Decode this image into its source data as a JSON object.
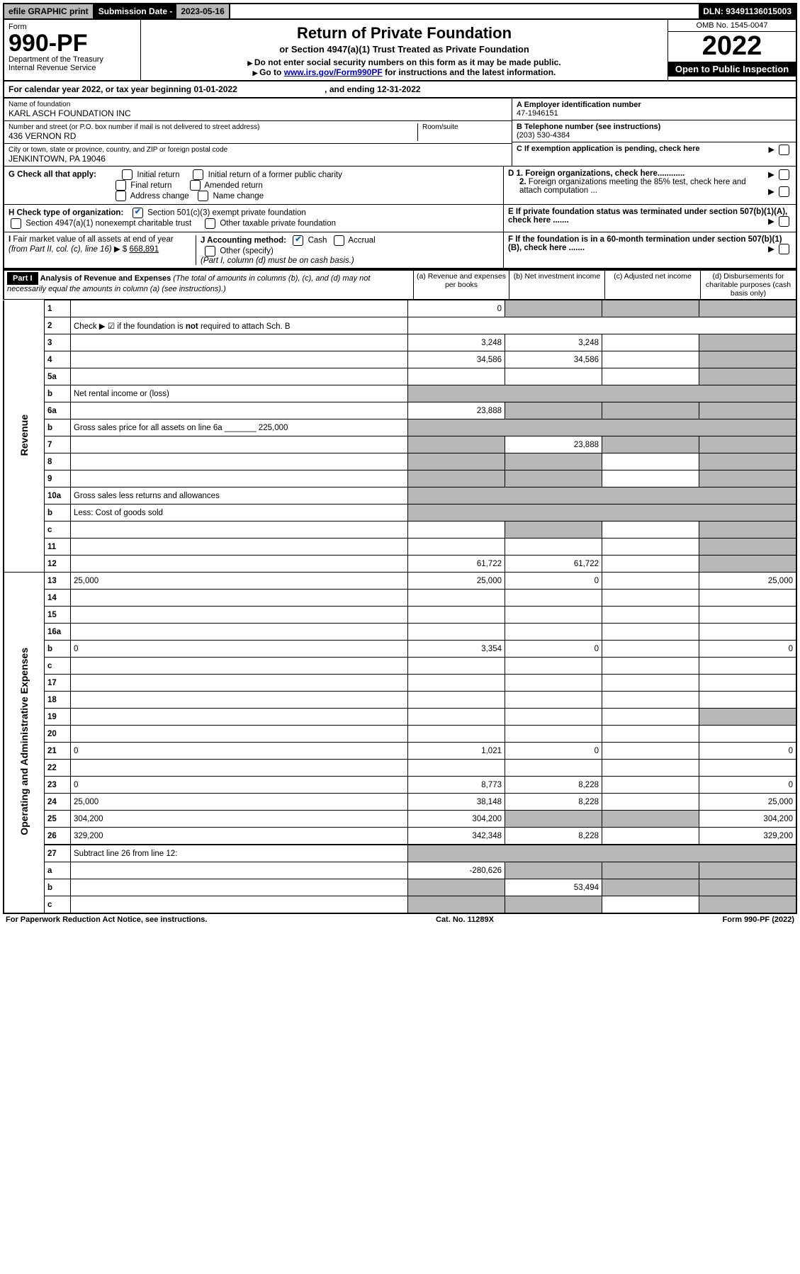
{
  "top": {
    "efile": "efile GRAPHIC print",
    "sub_label": "Submission Date - ",
    "sub_date": "2023-05-16",
    "dln": "DLN: 93491136015003"
  },
  "header": {
    "form_label": "Form",
    "form_no": "990-PF",
    "dept": "Department of the Treasury",
    "irs": "Internal Revenue Service",
    "title": "Return of Private Foundation",
    "subtitle": "or Section 4947(a)(1) Trust Treated as Private Foundation",
    "instr1": "Do not enter social security numbers on this form as it may be made public.",
    "instr2_pre": "Go to ",
    "instr2_link": "www.irs.gov/Form990PF",
    "instr2_post": " for instructions and the latest information.",
    "omb": "OMB No. 1545-0047",
    "year": "2022",
    "open": "Open to Public Inspection"
  },
  "cal": {
    "text": "For calendar year 2022, or tax year beginning 01-01-2022",
    "ending": ", and ending 12-31-2022"
  },
  "info": {
    "name_label": "Name of foundation",
    "name": "KARL ASCH FOUNDATION INC",
    "addr_label": "Number and street (or P.O. box number if mail is not delivered to street address)",
    "addr": "436 VERNON RD",
    "room_label": "Room/suite",
    "city_label": "City or town, state or province, country, and ZIP or foreign postal code",
    "city": "JENKINTOWN, PA  19046",
    "ein_label": "A Employer identification number",
    "ein": "47-1946151",
    "tel_label": "B Telephone number (see instructions)",
    "tel": "(203) 530-4384",
    "c_label": "C If exemption application is pending, check here"
  },
  "g": {
    "label": "G Check all that apply:",
    "opts": [
      "Initial return",
      "Final return",
      "Address change",
      "Initial return of a former public charity",
      "Amended return",
      "Name change"
    ]
  },
  "h": {
    "label": "H Check type of organization:",
    "opt1": "Section 501(c)(3) exempt private foundation",
    "opt2": "Section 4947(a)(1) nonexempt charitable trust",
    "opt3": "Other taxable private foundation"
  },
  "d": {
    "d1": "D 1. Foreign organizations, check here............",
    "d2": "2. Foreign organizations meeting the 85% test, check here and attach computation ...",
    "e": "E  If private foundation status was terminated under section 507(b)(1)(A), check here .......",
    "f": "F  If the foundation is in a 60-month termination under section 507(b)(1)(B), check here ......."
  },
  "i": {
    "label": "I Fair market value of all assets at end of year (from Part II, col. (c), line 16)",
    "val": "668,891",
    "j_label": "J Accounting method:",
    "j_cash": "Cash",
    "j_accrual": "Accrual",
    "j_other": "Other (specify)",
    "j_note": "(Part I, column (d) must be on cash basis.)"
  },
  "part1": {
    "label": "Part I",
    "title": "Analysis of Revenue and Expenses",
    "note": " (The total of amounts in columns (b), (c), and (d) may not necessarily equal the amounts in column (a) (see instructions).)",
    "cols": {
      "a": "(a) Revenue and expenses per books",
      "b": "(b) Net investment income",
      "c": "(c) Adjusted net income",
      "d": "(d) Disbursements for charitable purposes (cash basis only)"
    }
  },
  "side": {
    "rev": "Revenue",
    "exp": "Operating and Administrative Expenses"
  },
  "rows": [
    {
      "n": "1",
      "d": "",
      "a": "0",
      "b": "",
      "c": "",
      "shade_bcd": true
    },
    {
      "n": "2",
      "d": "Check ▶ ☑ if the foundation is <b>not</b> required to attach Sch. B",
      "nocols": true
    },
    {
      "n": "3",
      "d": "",
      "a": "3,248",
      "b": "3,248",
      "c": "",
      "shade_d": true
    },
    {
      "n": "4",
      "d": "",
      "a": "34,586",
      "b": "34,586",
      "c": "",
      "shade_d": true
    },
    {
      "n": "5a",
      "d": "",
      "a": "",
      "b": "",
      "c": "",
      "shade_d": true
    },
    {
      "n": "b",
      "d": "Net rental income or (loss)",
      "nocols_shade": true
    },
    {
      "n": "6a",
      "d": "",
      "a": "23,888",
      "b": "",
      "c": "",
      "shade_bcd": true
    },
    {
      "n": "b",
      "d": "Gross sales price for all assets on line 6a _______ 225,000",
      "nocols_shade": true
    },
    {
      "n": "7",
      "d": "",
      "a": "",
      "b": "23,888",
      "c": "",
      "shade_a": true,
      "shade_cd": true
    },
    {
      "n": "8",
      "d": "",
      "a": "",
      "b": "",
      "c": "",
      "shade_ab": true,
      "shade_d": true
    },
    {
      "n": "9",
      "d": "",
      "a": "",
      "b": "",
      "c": "",
      "shade_ab": true,
      "shade_d": true
    },
    {
      "n": "10a",
      "d": "Gross sales less returns and allowances",
      "nocols_shade": true
    },
    {
      "n": "b",
      "d": "Less: Cost of goods sold",
      "nocols_shade": true
    },
    {
      "n": "c",
      "d": "",
      "a": "",
      "b": "",
      "c": "",
      "shade_b": true,
      "shade_d": true
    },
    {
      "n": "11",
      "d": "",
      "a": "",
      "b": "",
      "c": "",
      "shade_d": true
    },
    {
      "n": "12",
      "d": "",
      "a": "61,722",
      "b": "61,722",
      "c": "",
      "shade_d": true
    },
    {
      "n": "13",
      "d": "25,000",
      "a": "25,000",
      "b": "0",
      "c": ""
    },
    {
      "n": "14",
      "d": "",
      "a": "",
      "b": "",
      "c": ""
    },
    {
      "n": "15",
      "d": "",
      "a": "",
      "b": "",
      "c": ""
    },
    {
      "n": "16a",
      "d": "",
      "a": "",
      "b": "",
      "c": ""
    },
    {
      "n": "b",
      "d": "0",
      "a": "3,354",
      "b": "0",
      "c": ""
    },
    {
      "n": "c",
      "d": "",
      "a": "",
      "b": "",
      "c": ""
    },
    {
      "n": "17",
      "d": "",
      "a": "",
      "b": "",
      "c": ""
    },
    {
      "n": "18",
      "d": "",
      "a": "",
      "b": "",
      "c": ""
    },
    {
      "n": "19",
      "d": "",
      "a": "",
      "b": "",
      "c": "",
      "shade_d": true
    },
    {
      "n": "20",
      "d": "",
      "a": "",
      "b": "",
      "c": ""
    },
    {
      "n": "21",
      "d": "0",
      "a": "1,021",
      "b": "0",
      "c": ""
    },
    {
      "n": "22",
      "d": "",
      "a": "",
      "b": "",
      "c": ""
    },
    {
      "n": "23",
      "d": "0",
      "a": "8,773",
      "b": "8,228",
      "c": ""
    },
    {
      "n": "24",
      "d": "25,000",
      "a": "38,148",
      "b": "8,228",
      "c": ""
    },
    {
      "n": "25",
      "d": "304,200",
      "a": "304,200",
      "b": "",
      "c": "",
      "shade_bc": true
    },
    {
      "n": "26",
      "d": "329,200",
      "a": "342,348",
      "b": "8,228",
      "c": ""
    },
    {
      "n": "27",
      "d": "Subtract line 26 from line 12:",
      "nocols_shade": true,
      "border_top_thick": true
    },
    {
      "n": "a",
      "d": "",
      "a": "-280,626",
      "b": "",
      "c": "",
      "shade_bcd": true
    },
    {
      "n": "b",
      "d": "",
      "a": "",
      "b": "53,494",
      "c": "",
      "shade_a": true,
      "shade_cd": true
    },
    {
      "n": "c",
      "d": "",
      "a": "",
      "b": "",
      "c": "",
      "shade_ab": true,
      "shade_d": true
    }
  ],
  "footer": {
    "left": "For Paperwork Reduction Act Notice, see instructions.",
    "mid": "Cat. No. 11289X",
    "right": "Form 990-PF (2022)"
  }
}
